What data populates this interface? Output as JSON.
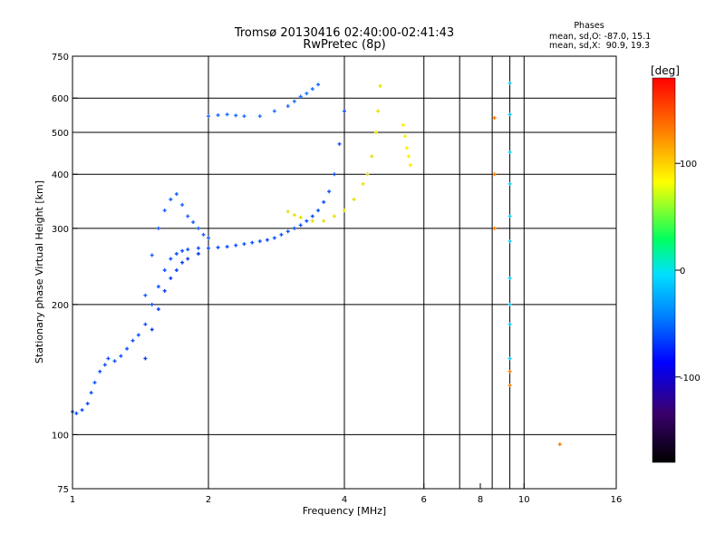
{
  "header": {
    "title": "Tromsø 20130416 02:40:00-02:41:43",
    "subtitle": "RwPretec (8p)",
    "stats_title": "Phases",
    "stats_o": "mean, sd,O: -87.0, 15.1",
    "stats_x": "mean, sd,X:  90.9, 19.3"
  },
  "chart_data": {
    "type": "scatter",
    "title": "Tromsø 20130416 02:40:00-02:41:43",
    "subtitle": "RwPretec (8p)",
    "xlabel": "Frequency [MHz]",
    "ylabel": "Stationary phase Virtual Height [km]",
    "x_scale": "log",
    "y_scale": "log",
    "xlim": [
      1,
      16
    ],
    "ylim": [
      75,
      750
    ],
    "x_ticks": [
      1,
      2,
      4,
      6,
      8,
      10,
      16
    ],
    "x_tick_labels": [
      "1",
      "2",
      "4",
      "6",
      "8",
      "10",
      "16"
    ],
    "x_grid": [
      2,
      4,
      6,
      7.2,
      8.5,
      9.3,
      10
    ],
    "y_ticks": [
      75,
      100,
      200,
      300,
      400,
      500,
      600,
      750
    ],
    "y_tick_labels": [
      "75",
      "100",
      "200",
      "300",
      "400",
      "500",
      "600",
      "750"
    ],
    "y_grid": [
      100,
      200,
      300,
      400,
      500,
      600
    ],
    "grid": true,
    "colorbar": {
      "label": "[deg]",
      "range": [
        -180,
        180
      ],
      "ticks": [
        100,
        0,
        -100
      ],
      "tick_labels": [
        "100",
        "0",
        "-100"
      ],
      "colors": [
        "#000000",
        "#3a006e",
        "#0000ff",
        "#0080ff",
        "#00e0ff",
        "#00ff60",
        "#ffff00",
        "#ff8000",
        "#ff0000"
      ]
    },
    "series": [
      {
        "color": "#1050ff",
        "x": [
          1.0,
          1.02,
          1.05,
          1.08,
          1.1,
          1.12,
          1.15,
          1.18,
          1.2,
          1.24,
          1.28,
          1.32,
          1.36,
          1.4,
          1.45,
          1.5,
          1.55,
          1.6,
          1.65,
          1.7,
          1.75,
          1.8,
          1.9,
          2.0,
          2.1,
          2.2,
          2.3,
          2.4,
          2.5,
          2.6,
          2.7,
          2.8,
          2.9,
          3.0,
          3.1,
          3.2,
          3.3,
          3.4,
          3.5,
          3.6,
          3.7,
          3.8,
          3.9,
          4.0
        ],
        "y": [
          113,
          112,
          114,
          118,
          125,
          132,
          140,
          145,
          150,
          148,
          152,
          158,
          165,
          170,
          180,
          200,
          220,
          240,
          255,
          262,
          266,
          268,
          270,
          270,
          271,
          272,
          274,
          276,
          278,
          280,
          282,
          285,
          290,
          295,
          300,
          305,
          312,
          320,
          330,
          345,
          365,
          400,
          470,
          560
        ]
      },
      {
        "color": "#1a60ff",
        "x": [
          1.45,
          1.5,
          1.55,
          1.6,
          1.65,
          1.7,
          1.75,
          1.8,
          1.85,
          1.9,
          1.95,
          2.0
        ],
        "y": [
          210,
          260,
          300,
          330,
          350,
          360,
          340,
          320,
          310,
          300,
          290,
          285
        ]
      },
      {
        "color": "#0a3cf0",
        "x": [
          1.45,
          1.5,
          1.55,
          1.6,
          1.65,
          1.7,
          1.75,
          1.8,
          1.9
        ],
        "y": [
          150,
          175,
          195,
          215,
          230,
          240,
          250,
          255,
          262
        ]
      },
      {
        "color": "#2070ff",
        "x": [
          2.0,
          2.1,
          2.2,
          2.3,
          2.4,
          2.6,
          2.8,
          3.0,
          3.1,
          3.2,
          3.3,
          3.4,
          3.5
        ],
        "y": [
          545,
          548,
          550,
          547,
          545,
          545,
          560,
          575,
          590,
          605,
          615,
          630,
          645
        ]
      },
      {
        "color": "#e8e000",
        "x": [
          3.0,
          3.1,
          3.2,
          3.4,
          3.6,
          3.8,
          4.0,
          4.2,
          4.4,
          4.5,
          4.6,
          4.7,
          4.75,
          4.8
        ],
        "y": [
          328,
          322,
          318,
          312,
          312,
          320,
          330,
          350,
          380,
          400,
          440,
          500,
          560,
          640
        ]
      },
      {
        "color": "#ffee00",
        "x": [
          5.4,
          5.45,
          5.5,
          5.55,
          5.6
        ],
        "y": [
          520,
          490,
          460,
          440,
          420
        ]
      },
      {
        "color": "#00d0ff",
        "x": [
          9.3,
          9.3,
          9.3,
          9.3,
          9.3,
          9.3,
          9.3,
          9.3,
          9.3,
          9.3
        ],
        "y": [
          650,
          550,
          450,
          380,
          320,
          280,
          230,
          200,
          180,
          150
        ]
      },
      {
        "color": "#ff7a00",
        "x": [
          9.3,
          9.3,
          12.0,
          8.6,
          8.6,
          8.6
        ],
        "y": [
          140,
          130,
          95,
          540,
          400,
          300
        ]
      }
    ]
  }
}
